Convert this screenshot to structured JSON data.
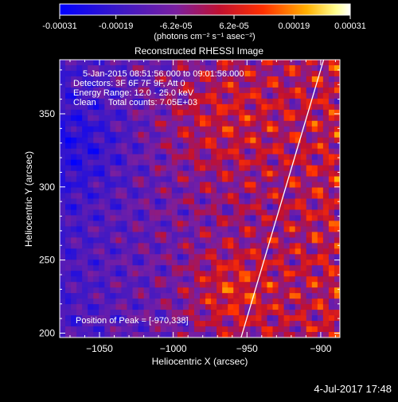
{
  "chart_data": {
    "type": "heatmap",
    "title": "Reconstructed RHESSI Image",
    "xlabel": "Heliocentric X (arcsec)",
    "ylabel": "Heliocentric Y (arcsec)",
    "xlim": [
      -1077,
      -887
    ],
    "ylim": [
      197,
      387
    ],
    "x_ticks": [
      -1050,
      -1000,
      -950,
      -900
    ],
    "x_tick_labels": [
      "−1050",
      "−1000",
      "−950",
      "−900"
    ],
    "y_ticks": [
      200,
      250,
      300,
      350
    ],
    "y_tick_labels": [
      "200",
      "250",
      "300",
      "350"
    ],
    "colorbar": {
      "min": -0.00031,
      "max": 0.00031,
      "ticks": [
        -0.00031,
        -0.00019,
        -6.2e-05,
        6.2e-05,
        0.00019,
        0.00031
      ],
      "tick_labels": [
        "-0.00031",
        "-0.00019",
        "-6.2e-05",
        "6.2e-05",
        "0.00019",
        "0.00031"
      ],
      "units_label": "(photons cm⁻² s⁻¹ asec⁻²)",
      "colormap": "blue-purple-red-yellow-white"
    },
    "annotations": {
      "time_range": "5-Jan-2015 08:51:56.000 to 09:01:56.000",
      "detectors": "Detectors: 3F 6F 7F 9F, Att 0",
      "energy": "Energy Range: 12.0 - 25.0 keV",
      "clean": "Clean     Total counts: 7.05E+03",
      "peak": "Position of Peak = [-970,338]"
    },
    "limb_line": {
      "x": [
        -954,
        -898
      ],
      "y": [
        197,
        387
      ]
    },
    "background_color": "#000000",
    "text_color": "#ffffff"
  },
  "footer": {
    "timestamp": "4-Jul-2017 17:48"
  }
}
